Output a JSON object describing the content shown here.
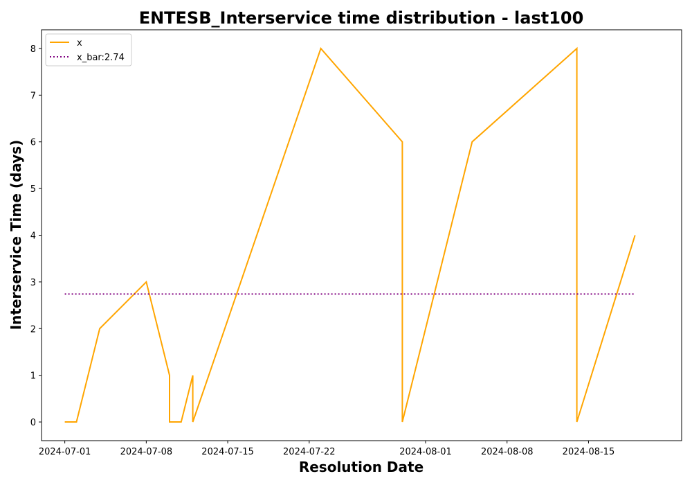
{
  "chart_data": {
    "type": "line",
    "title": "ENTESB_Interservice time distribution - last100",
    "xlabel": "Resolution Date",
    "ylabel": "Interservice Time (days)",
    "x_type": "date",
    "x_tick_labels": [
      "2024-07-01",
      "2024-07-08",
      "2024-07-15",
      "2024-07-22",
      "2024-08-01",
      "2024-08-08",
      "2024-08-15"
    ],
    "y_ticks": [
      0,
      1,
      2,
      3,
      4,
      5,
      6,
      7,
      8
    ],
    "xlim": [
      "2024-06-29",
      "2024-08-23"
    ],
    "ylim": [
      -0.4,
      8.4
    ],
    "grid": false,
    "legend_position": "top-left",
    "series": [
      {
        "name": "x",
        "color": "#ffa500",
        "style": "solid",
        "points": [
          {
            "x": "2024-07-01",
            "y": 0
          },
          {
            "x": "2024-07-02",
            "y": 0
          },
          {
            "x": "2024-07-04",
            "y": 2
          },
          {
            "x": "2024-07-08",
            "y": 3
          },
          {
            "x": "2024-07-10",
            "y": 1
          },
          {
            "x": "2024-07-10",
            "y": 0
          },
          {
            "x": "2024-07-11",
            "y": 0
          },
          {
            "x": "2024-07-12",
            "y": 1
          },
          {
            "x": "2024-07-12",
            "y": 0
          },
          {
            "x": "2024-07-23",
            "y": 8
          },
          {
            "x": "2024-07-30",
            "y": 6
          },
          {
            "x": "2024-07-30",
            "y": 0
          },
          {
            "x": "2024-08-05",
            "y": 6
          },
          {
            "x": "2024-08-14",
            "y": 8
          },
          {
            "x": "2024-08-14",
            "y": 0
          },
          {
            "x": "2024-08-19",
            "y": 4
          }
        ]
      },
      {
        "name": "x_bar:2.74",
        "color": "#800080",
        "style": "dotted",
        "points": [
          {
            "x": "2024-07-01",
            "y": 2.74
          },
          {
            "x": "2024-08-19",
            "y": 2.74
          }
        ]
      }
    ]
  }
}
